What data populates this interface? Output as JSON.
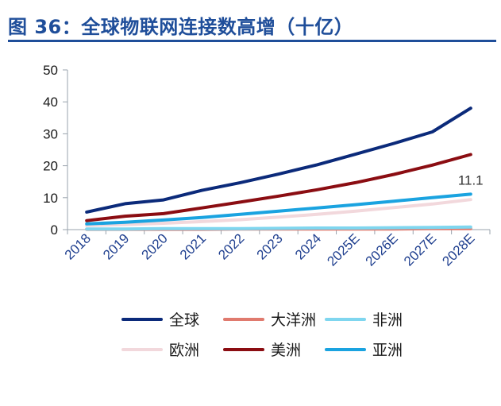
{
  "header": {
    "title": "图 36：全球物联网连接数高增（十亿）"
  },
  "chart_data": {
    "type": "line",
    "title": "",
    "xlabel": "",
    "ylabel": "",
    "categories": [
      "2018",
      "2019",
      "2020",
      "2021",
      "2022",
      "2023",
      "2024",
      "2025E",
      "2026E",
      "2027E",
      "2028E"
    ],
    "ylim": [
      0,
      50
    ],
    "yticks": [
      0,
      10,
      20,
      30,
      40,
      50
    ],
    "grid": false,
    "legend_position": "bottom",
    "series": [
      {
        "name": "全球",
        "color": "#0b2a7a",
        "values": [
          5.5,
          8.1,
          9.3,
          12.3,
          14.7,
          17.4,
          20.3,
          23.6,
          27.0,
          30.6,
          38.0
        ]
      },
      {
        "name": "大洋洲",
        "color": "#e07a6e",
        "values": [
          0.1,
          0.1,
          0.1,
          0.1,
          0.2,
          0.2,
          0.2,
          0.2,
          0.2,
          0.3,
          0.3
        ]
      },
      {
        "name": "非洲",
        "color": "#7fd6ef",
        "values": [
          0.2,
          0.2,
          0.3,
          0.3,
          0.3,
          0.4,
          0.5,
          0.5,
          0.6,
          0.7,
          0.8
        ]
      },
      {
        "name": "欧洲",
        "color": "#f2d8dc",
        "values": [
          1.3,
          1.6,
          2.0,
          2.5,
          3.1,
          3.9,
          4.8,
          5.8,
          6.9,
          8.0,
          9.4
        ]
      },
      {
        "name": "美洲",
        "color": "#8b0d12",
        "values": [
          2.8,
          4.2,
          5.0,
          6.8,
          8.6,
          10.5,
          12.5,
          14.7,
          17.3,
          20.2,
          23.5
        ]
      },
      {
        "name": "亚洲",
        "color": "#1aa3e0",
        "values": [
          1.8,
          2.3,
          3.0,
          3.8,
          4.8,
          5.8,
          6.8,
          7.8,
          8.9,
          10.0,
          11.1
        ]
      }
    ],
    "annotations": [
      {
        "series": "亚洲",
        "category": "2028E",
        "text": "11.1"
      }
    ]
  }
}
